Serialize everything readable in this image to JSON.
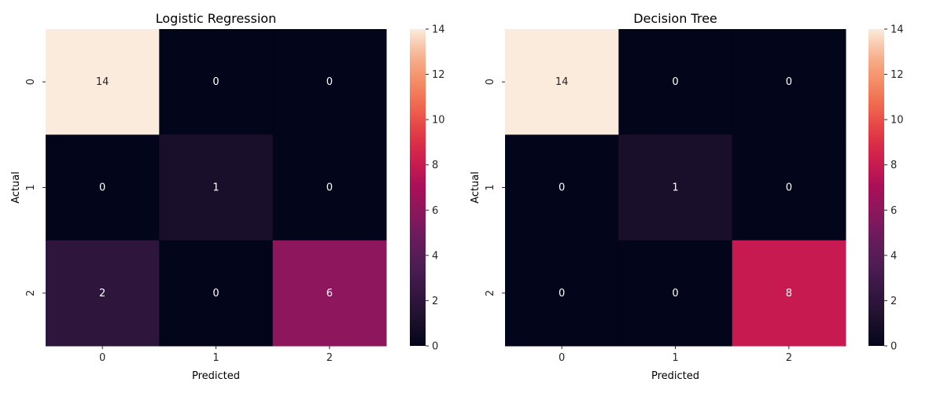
{
  "chart_data": [
    {
      "type": "heatmap",
      "title": "Logistic Regression",
      "xlabel": "Predicted",
      "ylabel": "Actual",
      "x_categories": [
        "0",
        "1",
        "2"
      ],
      "y_categories": [
        "0",
        "1",
        "2"
      ],
      "values": [
        [
          14,
          0,
          0
        ],
        [
          0,
          1,
          0
        ],
        [
          2,
          0,
          6
        ]
      ],
      "vmin": 0,
      "vmax": 14,
      "colorbar_ticks": [
        "0",
        "2",
        "4",
        "6",
        "8",
        "10",
        "12",
        "14"
      ],
      "colormap": "rocket"
    },
    {
      "type": "heatmap",
      "title": "Decision Tree",
      "xlabel": "Predicted",
      "ylabel": "Actual",
      "x_categories": [
        "0",
        "1",
        "2"
      ],
      "y_categories": [
        "0",
        "1",
        "2"
      ],
      "values": [
        [
          14,
          0,
          0
        ],
        [
          0,
          1,
          0
        ],
        [
          0,
          0,
          8
        ]
      ],
      "vmin": 0,
      "vmax": 14,
      "colorbar_ticks": [
        "0",
        "2",
        "4",
        "6",
        "8",
        "10",
        "12",
        "14"
      ],
      "colormap": "rocket"
    }
  ]
}
